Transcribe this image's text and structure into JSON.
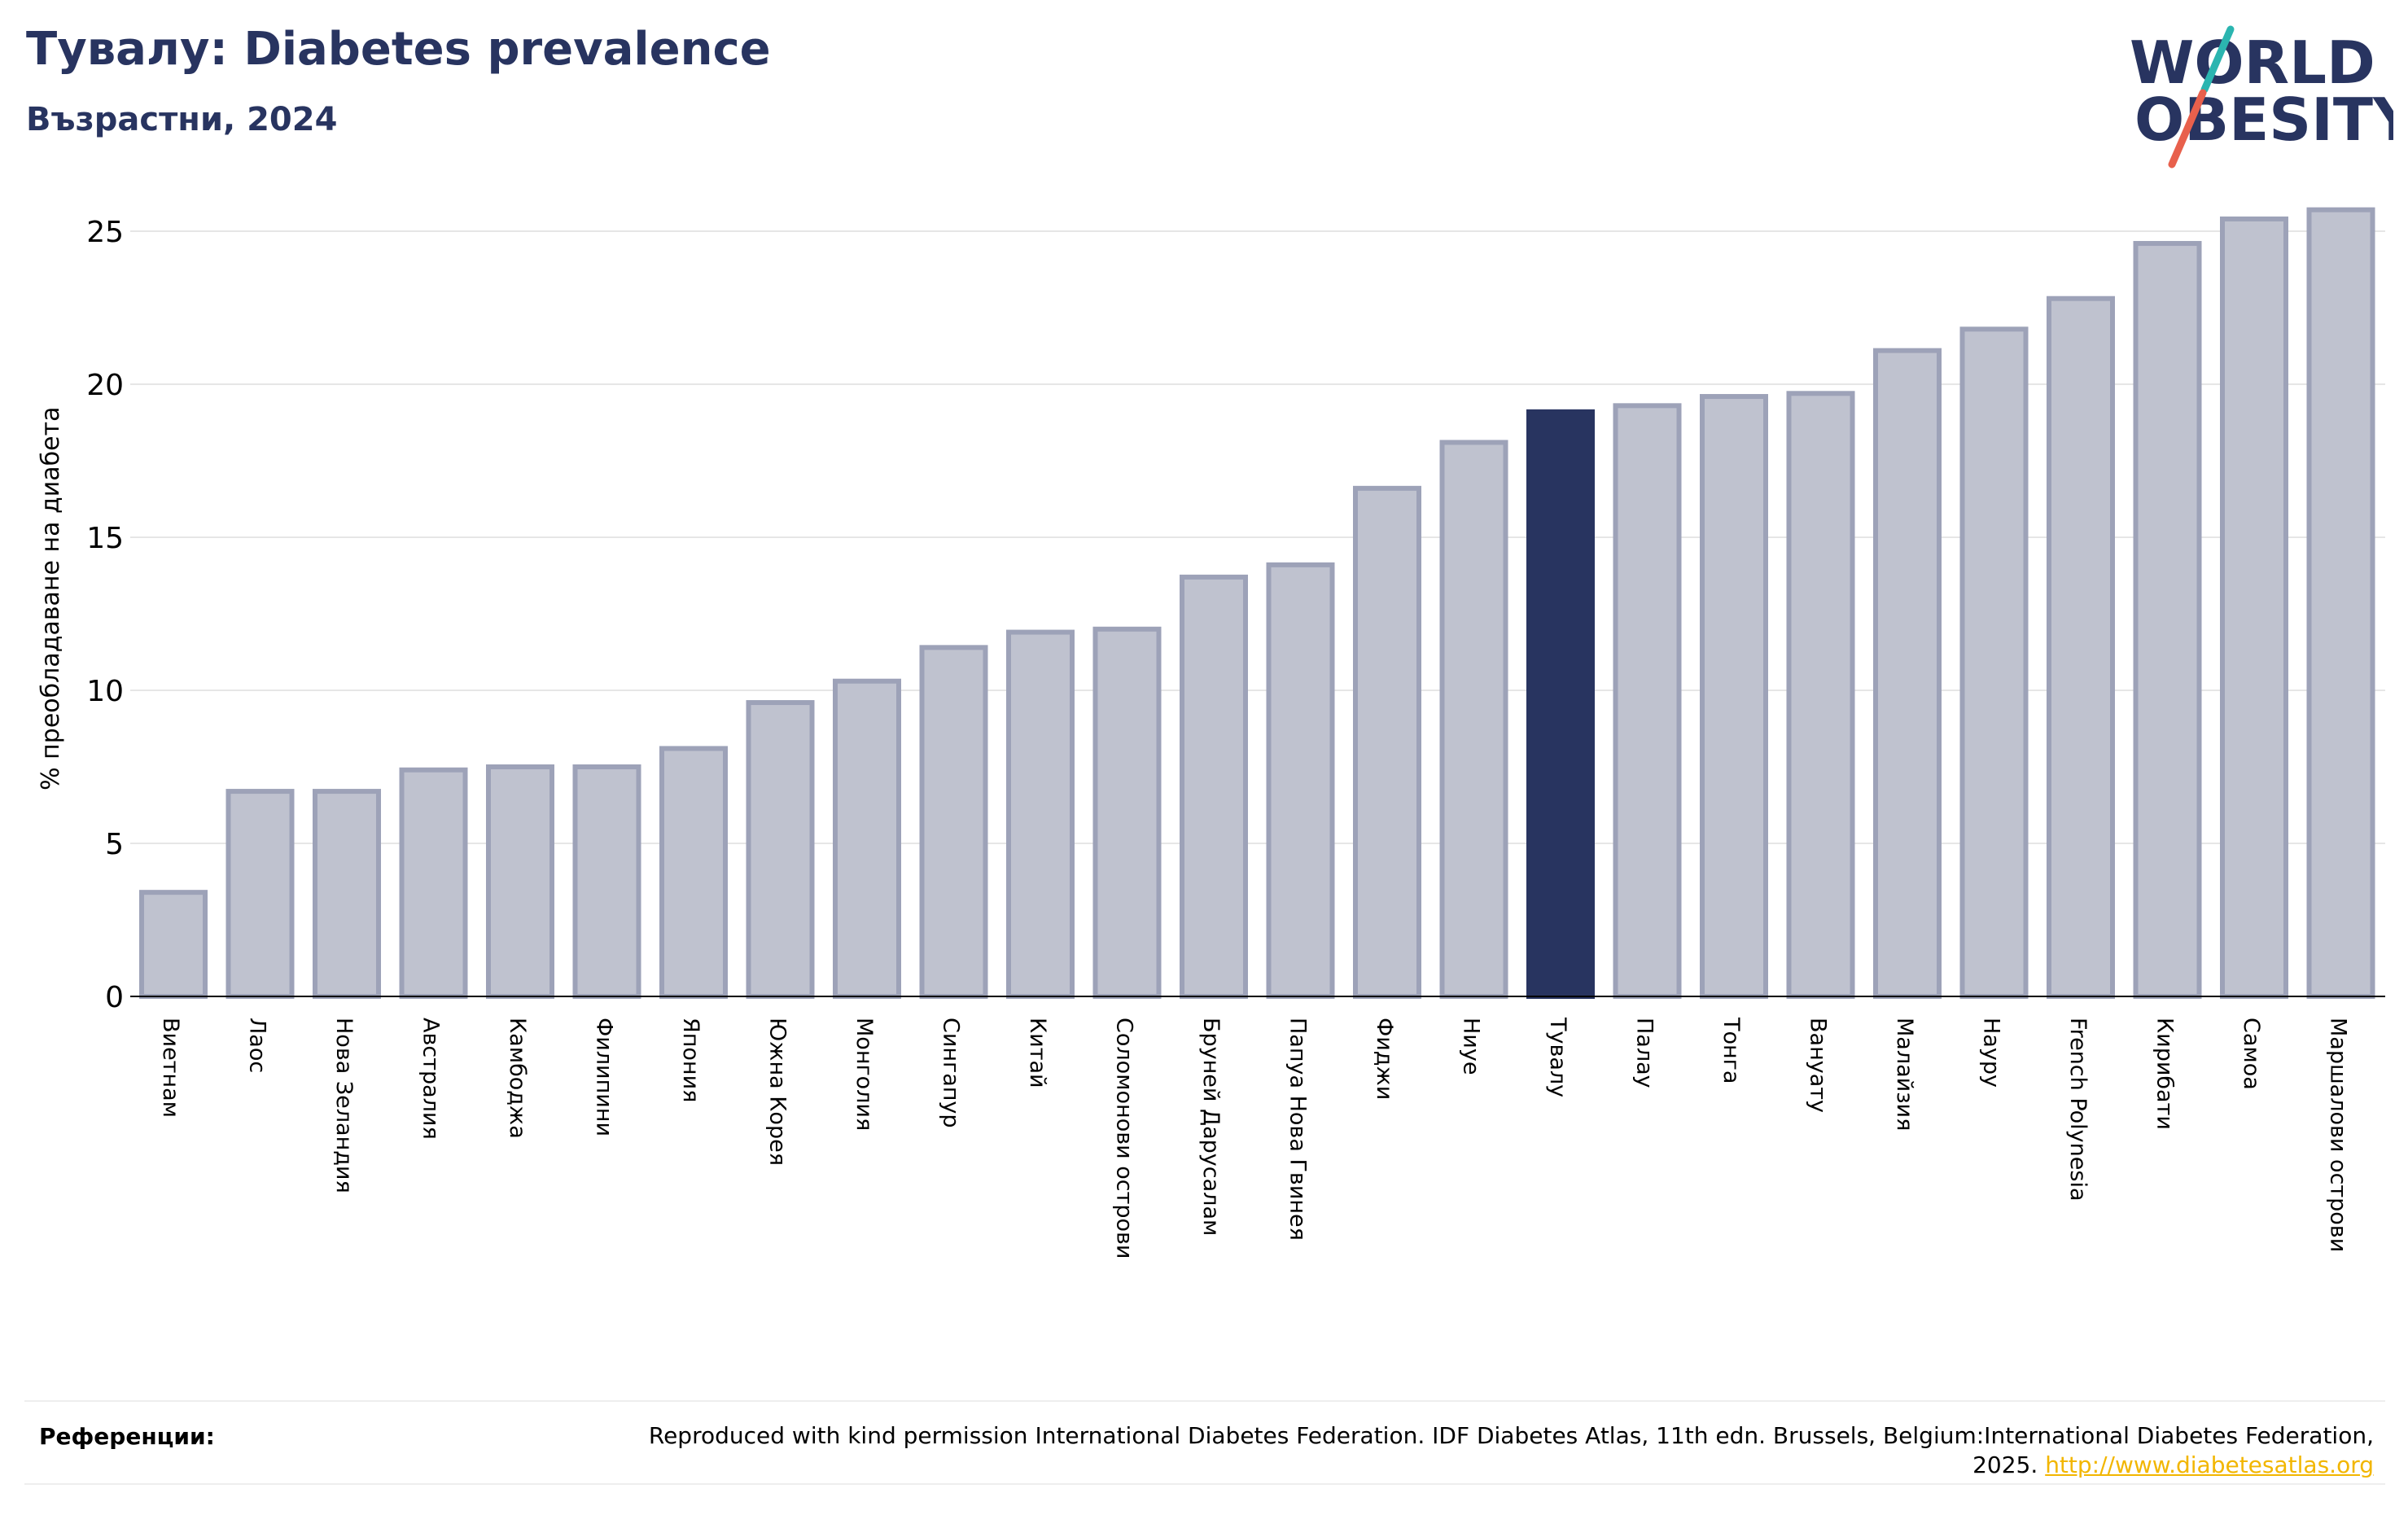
{
  "header": {
    "title": "Тувалу: Diabetes prevalence",
    "subtitle": "Възрастни, 2024"
  },
  "logo": {
    "line1": "WORLD",
    "line2": "OBESITY",
    "colors": {
      "text": "#283460",
      "slash_top": "#2bb5b0",
      "slash_bottom": "#e8604c"
    }
  },
  "chart_data": {
    "type": "bar",
    "title": "Тувалу: Diabetes prevalence",
    "subtitle": "Възрастни, 2024",
    "xlabel": "",
    "ylabel": "% преобладаване на диабета",
    "ylim": [
      0,
      26
    ],
    "yticks": [
      0,
      5,
      10,
      15,
      20,
      25
    ],
    "grid": true,
    "legend": "none",
    "highlight": "Тувалу",
    "colors": {
      "bar": "#bfc2cf",
      "bar_edge": "#9da2b8",
      "highlight": "#283460",
      "grid": "#e6e6e6"
    },
    "categories": [
      "Виетнам",
      "Лаос",
      "Нова Зеландия",
      "Австралия",
      "Камбоджа",
      "Филипини",
      "Япония",
      "Южна Корея",
      "Монголия",
      "Сингапур",
      "Китай",
      "Соломонови острови",
      "Бруней Дарусалам",
      "Папуа Нова Гвинея",
      "Фиджи",
      "Ниуе",
      "Тувалу",
      "Палау",
      "Тонга",
      "Вануату",
      "Малайзия",
      "Науру",
      "French Polynesia",
      "Кирибати",
      "Самоа",
      "Маршалови острови"
    ],
    "values": [
      3.4,
      6.7,
      6.7,
      7.4,
      7.5,
      7.5,
      8.1,
      9.6,
      10.3,
      11.4,
      11.9,
      12.0,
      13.7,
      14.1,
      16.6,
      18.1,
      19.1,
      19.3,
      19.6,
      19.7,
      21.1,
      21.8,
      22.8,
      24.6,
      25.4,
      25.7
    ]
  },
  "footer": {
    "label": "Референции:",
    "text": "Reproduced with kind permission International Diabetes Federation. IDF Diabetes Atlas, 11th edn. Brussels, Belgium:International Diabetes Federation, 2025.",
    "link": "http://www.diabetesatlas.org"
  }
}
